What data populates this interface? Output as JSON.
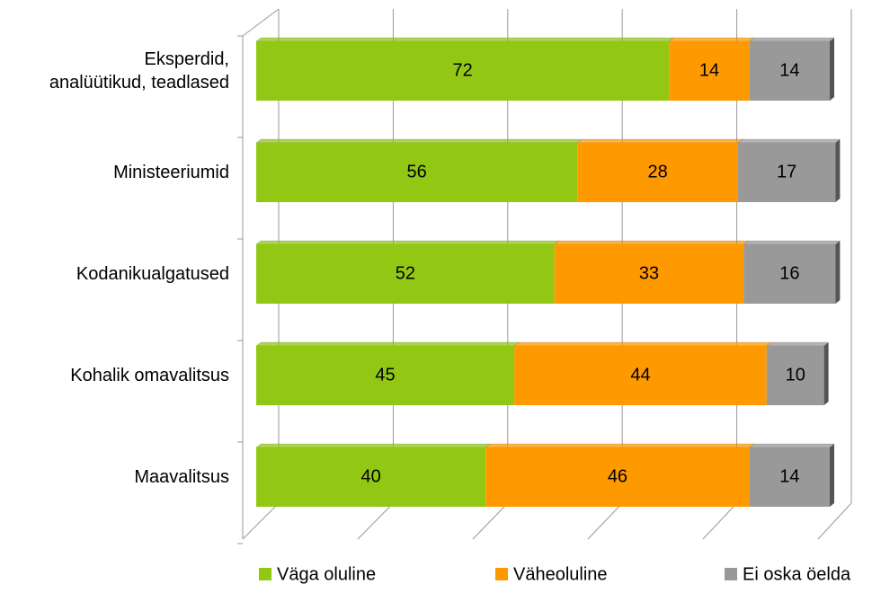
{
  "chart_data": {
    "type": "stacked_bar_horizontal",
    "categories": [
      "Eksperdid,\nanalüütikud, teadlased",
      "Ministeeriumid",
      "Kodanikualgatused",
      "Kohalik omavalitsus",
      "Maavalitsus"
    ],
    "series": [
      {
        "name": "Väga oluline",
        "color": "#92c814",
        "values": [
          72,
          56,
          52,
          45,
          40
        ]
      },
      {
        "name": "Väheoluline",
        "color": "#ff9900",
        "values": [
          14,
          28,
          33,
          44,
          46
        ]
      },
      {
        "name": "Ei oska öelda",
        "color": "#999999",
        "values": [
          14,
          17,
          16,
          10,
          14
        ]
      }
    ],
    "xlim": [
      0,
      100
    ],
    "xticks": [
      0,
      20,
      40,
      60,
      80,
      100
    ],
    "grid": true,
    "legend": "bottom"
  }
}
